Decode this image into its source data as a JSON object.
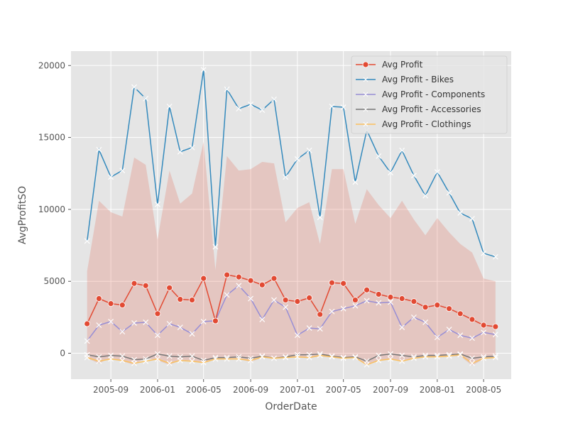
{
  "chart_data": {
    "type": "line",
    "xlabel": "OrderDate",
    "ylabel": "AvgProfitSO",
    "ylim": [
      -1800,
      21000
    ],
    "xlim": [
      "2005-05-20",
      "2008-07-12"
    ],
    "grid": true,
    "legend_position": "top-right",
    "y_ticks": [
      0,
      5000,
      10000,
      15000,
      20000
    ],
    "x_ticks": [
      {
        "date": "2005-09-01",
        "label": "2005-09"
      },
      {
        "date": "2006-01-01",
        "label": "2006-01"
      },
      {
        "date": "2006-05-01",
        "label": "2006-05"
      },
      {
        "date": "2006-09-01",
        "label": "2006-09"
      },
      {
        "date": "2007-01-01",
        "label": "2007-01"
      },
      {
        "date": "2007-05-01",
        "label": "2007-05"
      },
      {
        "date": "2007-09-01",
        "label": "2007-09"
      },
      {
        "date": "2008-01-01",
        "label": "2008-01"
      },
      {
        "date": "2008-05-01",
        "label": "2008-05"
      }
    ],
    "dates": [
      "2005-07-01",
      "2005-08-01",
      "2005-09-01",
      "2005-10-01",
      "2005-11-01",
      "2005-12-01",
      "2006-01-01",
      "2006-02-01",
      "2006-03-01",
      "2006-04-01",
      "2006-05-01",
      "2006-06-01",
      "2006-07-01",
      "2006-08-01",
      "2006-09-01",
      "2006-10-01",
      "2006-11-01",
      "2006-12-01",
      "2007-01-01",
      "2007-02-01",
      "2007-03-01",
      "2007-04-01",
      "2007-05-01",
      "2007-06-01",
      "2007-07-01",
      "2007-08-01",
      "2007-09-01",
      "2007-10-01",
      "2007-11-01",
      "2007-12-01",
      "2008-01-01",
      "2008-02-01",
      "2008-03-01",
      "2008-04-01",
      "2008-05-01",
      "2008-06-01"
    ],
    "band_series": {
      "name": "Avg Profit",
      "lower": [
        -350,
        -700,
        -300,
        -550,
        -800,
        -300,
        -500,
        -800,
        -500,
        -500,
        -700,
        -400,
        -400,
        -400,
        -600,
        -300,
        -400,
        -300,
        -300,
        -350,
        -200,
        -300,
        -400,
        -300,
        -850,
        -500,
        -400,
        -550,
        -350,
        -300,
        -200,
        -200,
        -200,
        -850,
        -400,
        -300
      ],
      "upper": [
        5700,
        10600,
        9800,
        9500,
        13600,
        13100,
        7900,
        12700,
        10400,
        11100,
        14700,
        5800,
        13700,
        12700,
        12800,
        13300,
        13200,
        9100,
        10100,
        10500,
        7600,
        12800,
        12800,
        9000,
        11400,
        10300,
        9400,
        10600,
        9300,
        8200,
        9400,
        8400,
        7600,
        7000,
        5200,
        5000
      ]
    },
    "series": [
      {
        "name": "Avg Profit",
        "color": "#E24A33",
        "marker": "circle",
        "values": [
          2050,
          3800,
          3450,
          3350,
          4850,
          4700,
          2750,
          4550,
          3750,
          3700,
          5200,
          2250,
          5450,
          5300,
          5050,
          4750,
          5200,
          3700,
          3600,
          3850,
          2700,
          4900,
          4850,
          3700,
          4400,
          4100,
          3900,
          3800,
          3600,
          3200,
          3350,
          3100,
          2750,
          2350,
          1950,
          1850
        ]
      },
      {
        "name": "Avg Profit - Bikes",
        "color": "#348ABD",
        "marker": "x",
        "values": [
          7800,
          14150,
          12250,
          12700,
          18500,
          17700,
          10350,
          17150,
          14000,
          14300,
          19700,
          7400,
          18350,
          17000,
          17300,
          16900,
          17650,
          12250,
          13500,
          14100,
          9450,
          17150,
          17100,
          11900,
          15500,
          13700,
          12550,
          14100,
          12350,
          10950,
          12600,
          11150,
          9750,
          9350,
          6950,
          6700
        ]
      },
      {
        "name": "Avg Profit - Components",
        "color": "#988ED5",
        "marker": "x",
        "values": [
          850,
          1950,
          2200,
          1500,
          2100,
          2150,
          1250,
          2050,
          1800,
          1350,
          2200,
          2250,
          4050,
          4700,
          3800,
          2350,
          3700,
          3200,
          1250,
          1750,
          1700,
          2900,
          3100,
          3300,
          3650,
          3500,
          3550,
          1800,
          2500,
          2150,
          1100,
          1650,
          1250,
          1050,
          1450,
          1300
        ]
      },
      {
        "name": "Avg Profit - Accessories",
        "color": "#777777",
        "marker": "x",
        "values": [
          -100,
          -250,
          -150,
          -200,
          -450,
          -400,
          -50,
          -200,
          -250,
          -200,
          -500,
          -300,
          -300,
          -250,
          -350,
          -200,
          -350,
          -250,
          -100,
          -100,
          -50,
          -200,
          -300,
          -250,
          -550,
          -150,
          -50,
          -150,
          -250,
          -150,
          -150,
          -100,
          -50,
          -350,
          -250,
          -200
        ]
      },
      {
        "name": "Avg Profit - Clothings",
        "color": "#FBC15E",
        "marker": "x",
        "values": [
          -300,
          -550,
          -400,
          -500,
          -700,
          -550,
          -400,
          -700,
          -500,
          -550,
          -650,
          -400,
          -400,
          -400,
          -500,
          -250,
          -350,
          -300,
          -250,
          -300,
          -150,
          -250,
          -350,
          -300,
          -800,
          -500,
          -400,
          -550,
          -350,
          -250,
          -250,
          -200,
          -100,
          -700,
          -350,
          -300
        ]
      }
    ]
  }
}
